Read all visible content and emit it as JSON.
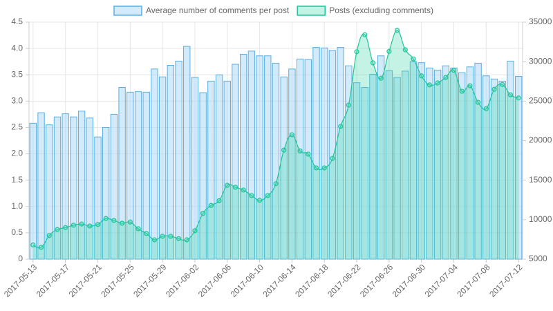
{
  "chart_data": {
    "type": "bar-line",
    "categories": [
      "2017-05-13",
      null,
      null,
      null,
      "2017-05-17",
      null,
      null,
      null,
      "2017-05-21",
      null,
      null,
      null,
      "2017-05-25",
      null,
      null,
      null,
      "2017-05-29",
      null,
      null,
      null,
      "2017-06-02",
      null,
      null,
      null,
      "2017-06-06",
      null,
      null,
      null,
      "2017-06-10",
      null,
      null,
      null,
      "2017-06-14",
      null,
      null,
      null,
      "2017-06-18",
      null,
      null,
      null,
      "2017-06-22",
      null,
      null,
      null,
      "2017-06-26",
      null,
      null,
      null,
      "2017-06-30",
      null,
      null,
      null,
      "2017-07-04",
      null,
      null,
      null,
      "2017-07-08",
      null,
      null,
      null,
      "2017-07-12"
    ],
    "series": [
      {
        "name": "Average number of comments per post",
        "type": "bar",
        "axis": "y",
        "color": "#5aaee0",
        "values": [
          2.58,
          2.78,
          2.55,
          2.7,
          2.76,
          2.7,
          2.81,
          2.68,
          2.32,
          2.5,
          2.75,
          3.26,
          3.17,
          3.18,
          3.17,
          3.61,
          3.46,
          3.68,
          3.76,
          4.04,
          3.45,
          3.16,
          3.38,
          3.5,
          3.38,
          3.7,
          3.89,
          3.95,
          3.86,
          3.86,
          3.72,
          3.46,
          3.61,
          3.8,
          3.79,
          4.02,
          4.01,
          3.96,
          4.02,
          3.67,
          3.35,
          3.26,
          3.51,
          3.86,
          3.58,
          3.45,
          3.57,
          3.75,
          3.73,
          3.63,
          3.59,
          3.67,
          3.63,
          3.54,
          3.65,
          3.72,
          3.48,
          3.42,
          3.38,
          3.76,
          3.47
        ]
      },
      {
        "name": "Posts (excluding comments)",
        "type": "line",
        "axis": "y2",
        "color": "#20c39a",
        "values": [
          6800,
          6500,
          8000,
          8750,
          9000,
          9300,
          9450,
          9200,
          9400,
          10150,
          9900,
          9550,
          9700,
          8850,
          8250,
          7450,
          7900,
          7900,
          7600,
          7450,
          8600,
          10800,
          11800,
          12400,
          14350,
          14100,
          13750,
          13050,
          12450,
          13050,
          14550,
          18800,
          20750,
          18700,
          18300,
          16550,
          16550,
          17750,
          21800,
          24500,
          31250,
          33400,
          29850,
          27900,
          31300,
          33950,
          31500,
          30350,
          28200,
          27050,
          27300,
          28000,
          28900,
          26250,
          26950,
          24850,
          24050,
          26500,
          27100,
          25800,
          25400
        ]
      }
    ],
    "ylim": [
      0,
      4.5
    ],
    "yticks": [
      0,
      0.5,
      {
        "value": 1,
        "label": "1.0"
      },
      1.5,
      {
        "value": 2,
        "label": "2.0"
      },
      2.5,
      {
        "value": 3,
        "label": "3.0"
      },
      3.5,
      {
        "value": 4,
        "label": "4.0"
      },
      4.5
    ],
    "y2lim": [
      5000,
      35000
    ],
    "y2ticks": [
      5000,
      10000,
      15000,
      20000,
      25000,
      30000,
      35000
    ],
    "grid": true,
    "legend": "top"
  }
}
